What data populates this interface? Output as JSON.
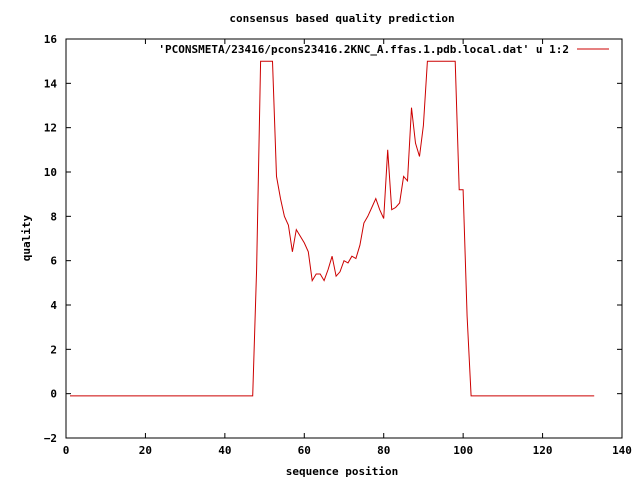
{
  "chart_data": {
    "type": "line",
    "title": "consensus based quality prediction",
    "xlabel": "sequence position",
    "ylabel": "quality",
    "xlim": [
      0,
      140
    ],
    "ylim": [
      -2,
      16
    ],
    "xticks": [
      0,
      20,
      40,
      60,
      80,
      100,
      120,
      140
    ],
    "yticks": [
      -2,
      0,
      2,
      4,
      6,
      8,
      10,
      12,
      14,
      16
    ],
    "grid": false,
    "legend_position": "top-right",
    "series": [
      {
        "name": "'PCONSMETA/23416/pcons23416.2KNC_A.ffas.1.pdb.local.dat' u 1:2",
        "color": "#cc0000",
        "x": [
          1,
          2,
          3,
          4,
          5,
          6,
          7,
          8,
          9,
          10,
          11,
          12,
          13,
          14,
          15,
          16,
          17,
          18,
          19,
          20,
          21,
          22,
          23,
          24,
          25,
          26,
          27,
          28,
          29,
          30,
          31,
          32,
          33,
          34,
          35,
          36,
          37,
          38,
          39,
          40,
          41,
          42,
          43,
          44,
          45,
          46,
          47,
          48,
          49,
          50,
          51,
          52,
          53,
          54,
          55,
          56,
          57,
          58,
          59,
          60,
          61,
          62,
          63,
          64,
          65,
          66,
          67,
          68,
          69,
          70,
          71,
          72,
          73,
          74,
          75,
          76,
          77,
          78,
          79,
          80,
          81,
          82,
          83,
          84,
          85,
          86,
          87,
          88,
          89,
          90,
          91,
          92,
          93,
          94,
          95,
          96,
          97,
          98,
          99,
          100,
          101,
          102,
          103,
          104,
          105,
          106,
          107,
          108,
          109,
          110,
          111,
          112,
          113,
          114,
          115,
          116,
          117,
          118,
          119,
          120,
          121,
          122,
          123,
          124,
          125,
          126,
          127,
          128,
          129,
          130,
          131,
          132,
          133
        ],
        "y": [
          -0.1,
          -0.1,
          -0.1,
          -0.1,
          -0.1,
          -0.1,
          -0.1,
          -0.1,
          -0.1,
          -0.1,
          -0.1,
          -0.1,
          -0.1,
          -0.1,
          -0.1,
          -0.1,
          -0.1,
          -0.1,
          -0.1,
          -0.1,
          -0.1,
          -0.1,
          -0.1,
          -0.1,
          -0.1,
          -0.1,
          -0.1,
          -0.1,
          -0.1,
          -0.1,
          -0.1,
          -0.1,
          -0.1,
          -0.1,
          -0.1,
          -0.1,
          -0.1,
          -0.1,
          -0.1,
          -0.1,
          -0.1,
          -0.1,
          -0.1,
          -0.1,
          -0.1,
          -0.1,
          -0.1,
          5.6,
          15.0,
          15.0,
          15.0,
          15.0,
          9.8,
          8.8,
          8.0,
          7.6,
          6.4,
          7.4,
          7.1,
          6.8,
          6.4,
          5.1,
          5.4,
          5.4,
          5.1,
          5.6,
          6.2,
          5.3,
          5.5,
          6.0,
          5.9,
          6.2,
          6.1,
          6.7,
          7.7,
          8.0,
          8.4,
          8.8,
          8.3,
          7.9,
          11.0,
          8.3,
          8.4,
          8.6,
          9.8,
          9.6,
          12.9,
          11.3,
          10.7,
          12.1,
          15.0,
          15.0,
          15.0,
          15.0,
          15.0,
          15.0,
          15.0,
          15.0,
          9.2,
          9.2,
          3.5,
          -0.1,
          -0.1,
          -0.1,
          -0.1,
          -0.1,
          -0.1,
          -0.1,
          -0.1,
          -0.1,
          -0.1,
          -0.1,
          -0.1,
          -0.1,
          -0.1,
          -0.1,
          -0.1,
          -0.1,
          -0.1,
          -0.1,
          -0.1,
          -0.1,
          -0.1,
          -0.1,
          -0.1,
          -0.1,
          -0.1,
          -0.1,
          -0.1,
          -0.1,
          -0.1,
          -0.1,
          -0.1
        ]
      }
    ]
  }
}
